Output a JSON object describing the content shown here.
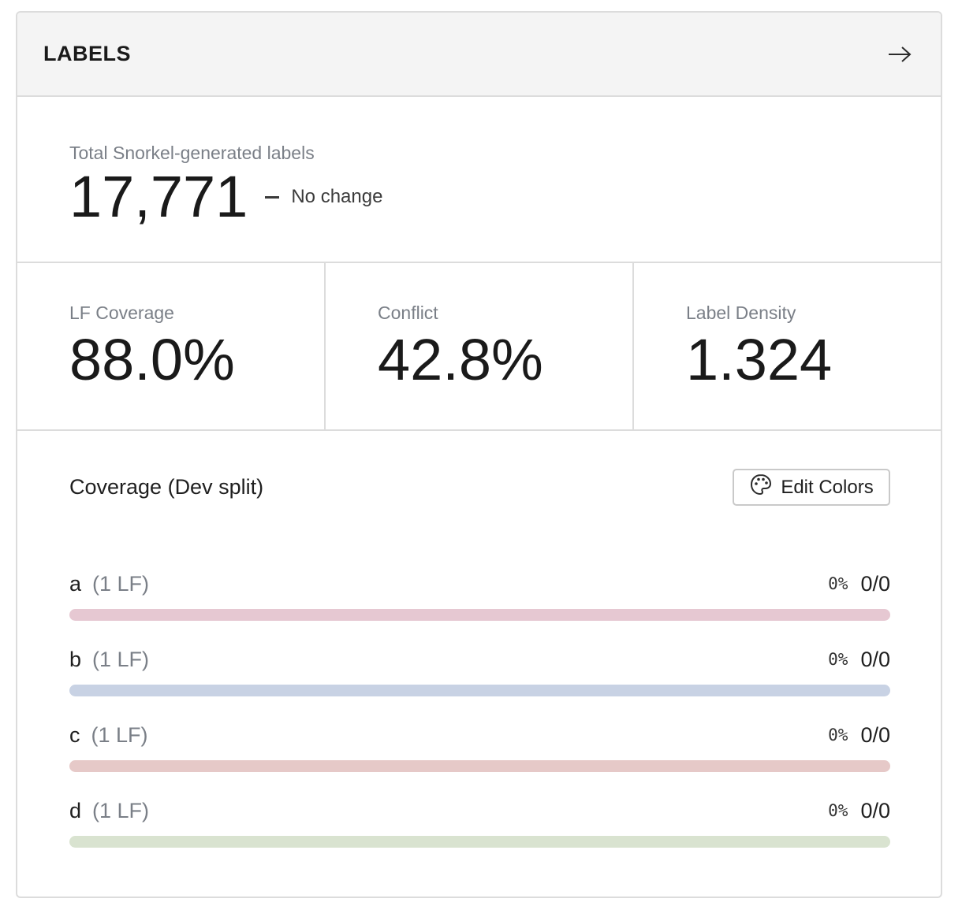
{
  "header": {
    "title": "LABELS",
    "arrow_icon": "arrow-right-icon"
  },
  "total": {
    "label": "Total Snorkel-generated labels",
    "value": "17,771",
    "change": "No change"
  },
  "stats": [
    {
      "label": "LF Coverage",
      "value": "88.0%"
    },
    {
      "label": "Conflict",
      "value": "42.8%"
    },
    {
      "label": "Label Density",
      "value": "1.324"
    }
  ],
  "coverage": {
    "title": "Coverage (Dev split)",
    "edit_button": "Edit Colors",
    "edit_icon": "palette-icon",
    "rows": [
      {
        "label": "a",
        "lf": "(1 LF)",
        "pct": "0%",
        "count": "0/0",
        "color": "#e6c8d2"
      },
      {
        "label": "b",
        "lf": "(1 LF)",
        "pct": "0%",
        "count": "0/0",
        "color": "#c8d2e4"
      },
      {
        "label": "c",
        "lf": "(1 LF)",
        "pct": "0%",
        "count": "0/0",
        "color": "#e6c9c8"
      },
      {
        "label": "d",
        "lf": "(1 LF)",
        "pct": "0%",
        "count": "0/0",
        "color": "#d9e3d0"
      }
    ]
  }
}
